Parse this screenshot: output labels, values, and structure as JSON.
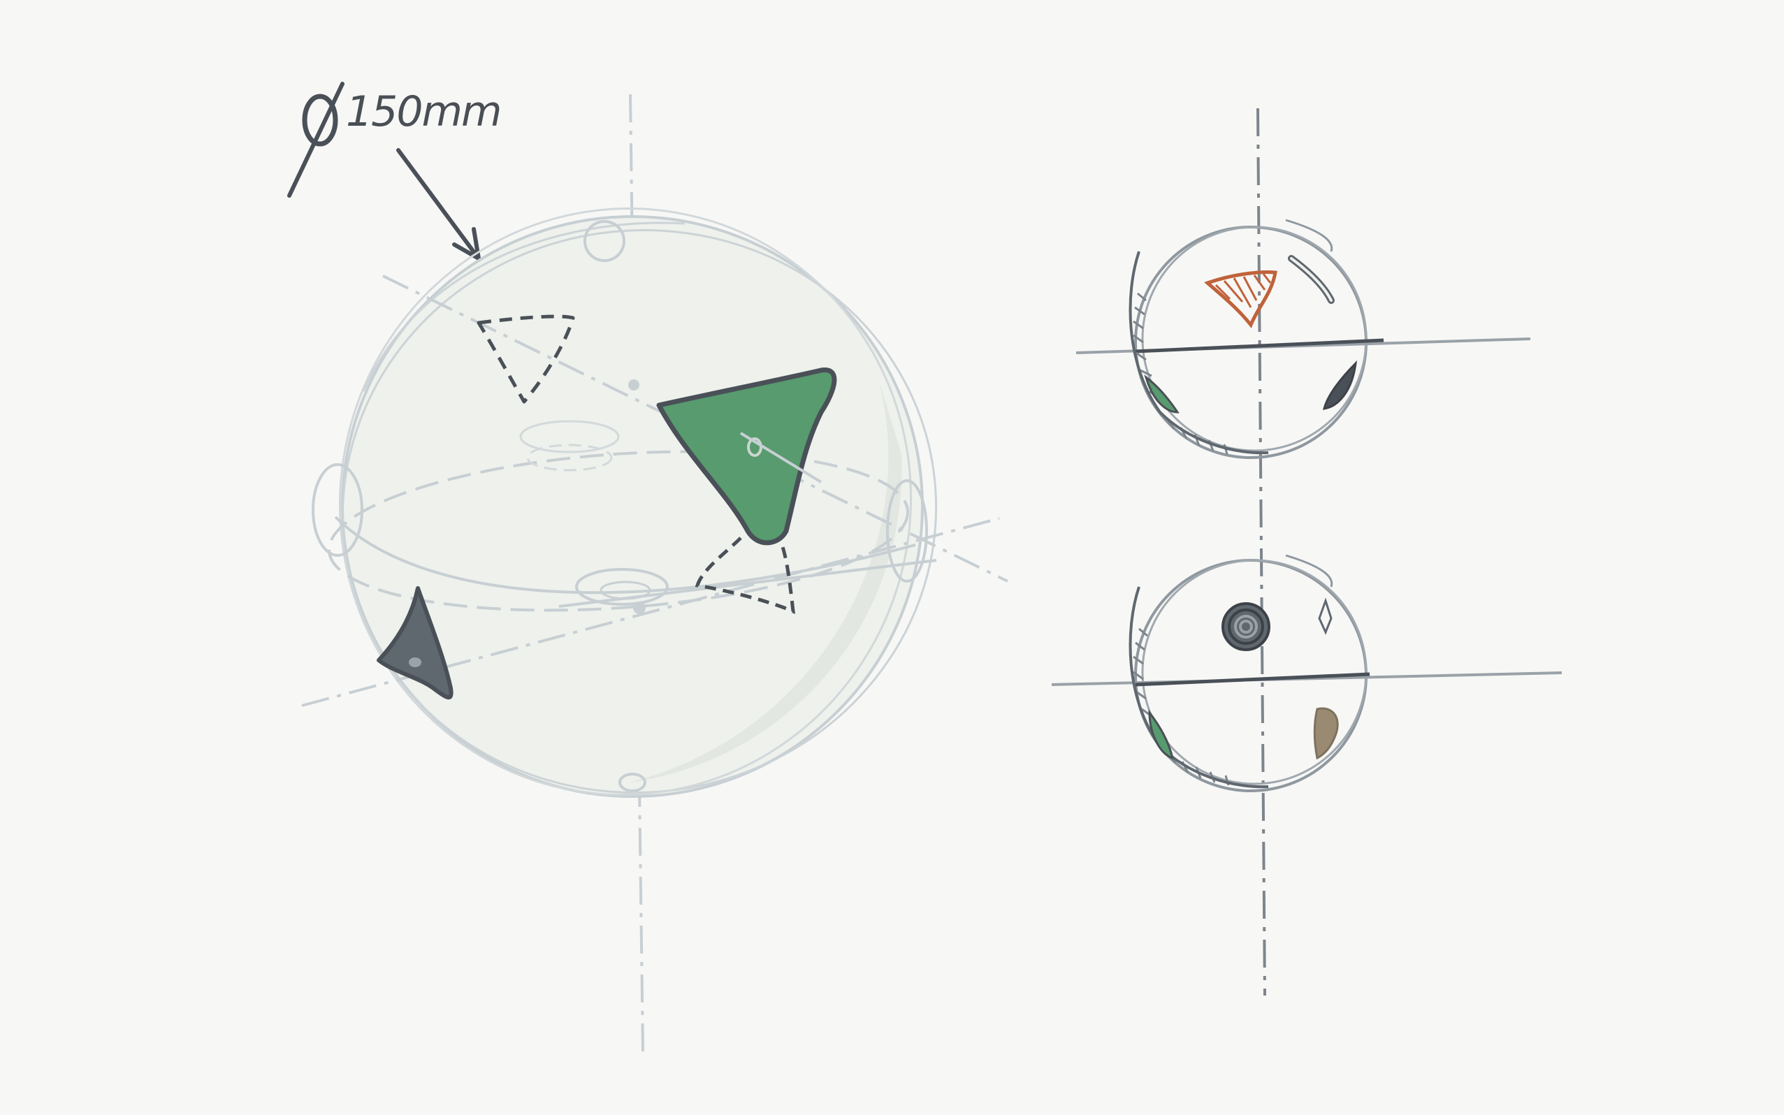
{
  "annotation": {
    "diameter_symbol": "∅",
    "diameter_text": "150mm"
  },
  "colors": {
    "paper": "#f7f7f6",
    "construction": "#c7cfd3",
    "pencil": "#4a5057",
    "sphere_fill": "#eef1ec",
    "sphere_shade": "#e2e7e1",
    "green_hold": "#579b6e",
    "slate_hold": "#5f676f",
    "rust_hold": "#c0623a",
    "tan_hold": "#9a8a72"
  },
  "icons": {
    "large_sphere": "sphere-perspective-drawing",
    "top_view": "sphere-section-view",
    "bottom_view": "sphere-section-view"
  }
}
